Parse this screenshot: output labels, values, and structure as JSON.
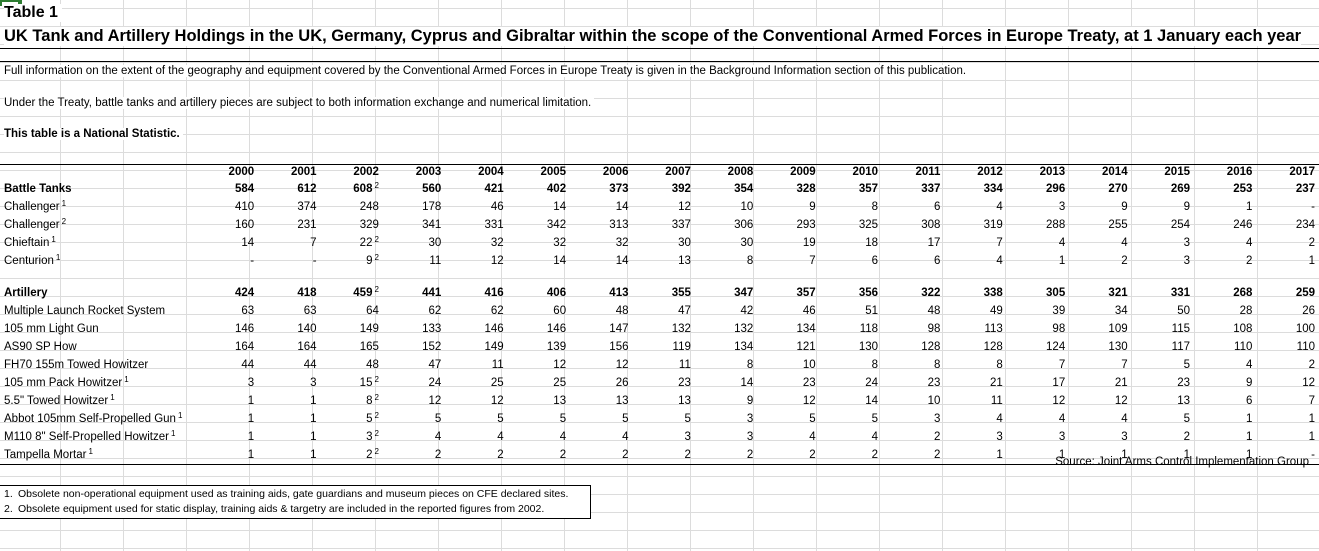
{
  "sheet": {
    "table_label": "Table 1"
  },
  "title": "UK Tank and Artillery Holdings in the UK, Germany, Cyprus and Gibraltar within the scope of the Conventional Armed Forces in Europe Treaty, at 1 January each year",
  "notes": {
    "info": "Full information on the extent of the geography and equipment covered by the Conventional Armed Forces in Europe Treaty is given in the Background Information section of this publication.",
    "limitation": "Under the Treaty, battle tanks and artillery pieces are subject to both information exchange and numerical limitation.",
    "national_statistic": "This table is a National Statistic."
  },
  "years": [
    "2000",
    "2001",
    "2002",
    "2003",
    "2004",
    "2005",
    "2006",
    "2007",
    "2008",
    "2009",
    "2010",
    "2011",
    "2012",
    "2013",
    "2014",
    "2015",
    "2016",
    "2017"
  ],
  "tank_rows": [
    {
      "label": "Battle Tanks",
      "label_sup": "",
      "bold": true,
      "values": [
        "584",
        "612",
        "608",
        "560",
        "421",
        "402",
        "373",
        "392",
        "354",
        "328",
        "357",
        "337",
        "334",
        "296",
        "270",
        "269",
        "253",
        "237"
      ],
      "sups": [
        "",
        "",
        "2",
        "",
        "",
        "",
        "",
        "",
        "",
        "",
        "",
        "",
        "",
        "",
        "",
        "",
        "",
        ""
      ]
    },
    {
      "label": "Challenger",
      "label_sup": "1",
      "bold": false,
      "values": [
        "410",
        "374",
        "248",
        "178",
        "46",
        "14",
        "14",
        "12",
        "10",
        "9",
        "8",
        "6",
        "4",
        "3",
        "9",
        "9",
        "1",
        "-"
      ],
      "sups": [
        "",
        "",
        "",
        "",
        "",
        "",
        "",
        "",
        "",
        "",
        "",
        "",
        "",
        "",
        "",
        "",
        "",
        ""
      ]
    },
    {
      "label": "Challenger",
      "label_sup": "2",
      "bold": false,
      "values": [
        "160",
        "231",
        "329",
        "341",
        "331",
        "342",
        "313",
        "337",
        "306",
        "293",
        "325",
        "308",
        "319",
        "288",
        "255",
        "254",
        "246",
        "234"
      ],
      "sups": [
        "",
        "",
        "",
        "",
        "",
        "",
        "",
        "",
        "",
        "",
        "",
        "",
        "",
        "",
        "",
        "",
        "",
        ""
      ]
    },
    {
      "label": "Chieftain",
      "label_sup": "1",
      "bold": false,
      "values": [
        "14",
        "7",
        "22",
        "30",
        "32",
        "32",
        "32",
        "30",
        "30",
        "19",
        "18",
        "17",
        "7",
        "4",
        "4",
        "3",
        "4",
        "2"
      ],
      "sups": [
        "",
        "",
        "2",
        "",
        "",
        "",
        "",
        "",
        "",
        "",
        "",
        "",
        "",
        "",
        "",
        "",
        "",
        ""
      ]
    },
    {
      "label": "Centurion",
      "label_sup": "1",
      "bold": false,
      "values": [
        "-",
        "-",
        "9",
        "11",
        "12",
        "14",
        "14",
        "13",
        "8",
        "7",
        "6",
        "6",
        "4",
        "1",
        "2",
        "3",
        "2",
        "1"
      ],
      "sups": [
        "",
        "",
        "2",
        "",
        "",
        "",
        "",
        "",
        "",
        "",
        "",
        "",
        "",
        "",
        "",
        "",
        "",
        ""
      ]
    }
  ],
  "artillery_rows": [
    {
      "label": "Artillery",
      "label_sup": "",
      "bold": true,
      "values": [
        "424",
        "418",
        "459",
        "441",
        "416",
        "406",
        "413",
        "355",
        "347",
        "357",
        "356",
        "322",
        "338",
        "305",
        "321",
        "331",
        "268",
        "259"
      ],
      "sups": [
        "",
        "",
        "2",
        "",
        "",
        "",
        "",
        "",
        "",
        "",
        "",
        "",
        "",
        "",
        "",
        "",
        "",
        ""
      ]
    },
    {
      "label": "Multiple Launch Rocket System",
      "label_sup": "",
      "bold": false,
      "values": [
        "63",
        "63",
        "64",
        "62",
        "62",
        "60",
        "48",
        "47",
        "42",
        "46",
        "51",
        "48",
        "49",
        "39",
        "34",
        "50",
        "28",
        "26"
      ],
      "sups": [
        "",
        "",
        "",
        "",
        "",
        "",
        "",
        "",
        "",
        "",
        "",
        "",
        "",
        "",
        "",
        "",
        "",
        ""
      ]
    },
    {
      "label": "105 mm Light Gun",
      "label_sup": "",
      "bold": false,
      "values": [
        "146",
        "140",
        "149",
        "133",
        "146",
        "146",
        "147",
        "132",
        "132",
        "134",
        "118",
        "98",
        "113",
        "98",
        "109",
        "115",
        "108",
        "100"
      ],
      "sups": [
        "",
        "",
        "",
        "",
        "",
        "",
        "",
        "",
        "",
        "",
        "",
        "",
        "",
        "",
        "",
        "",
        "",
        ""
      ]
    },
    {
      "label": "AS90 SP How",
      "label_sup": "",
      "bold": false,
      "values": [
        "164",
        "164",
        "165",
        "152",
        "149",
        "139",
        "156",
        "119",
        "134",
        "121",
        "130",
        "128",
        "128",
        "124",
        "130",
        "117",
        "110",
        "110"
      ],
      "sups": [
        "",
        "",
        "",
        "",
        "",
        "",
        "",
        "",
        "",
        "",
        "",
        "",
        "",
        "",
        "",
        "",
        "",
        ""
      ]
    },
    {
      "label": "FH70 155m Towed Howitzer",
      "label_sup": "",
      "bold": false,
      "values": [
        "44",
        "44",
        "48",
        "47",
        "11",
        "12",
        "12",
        "11",
        "8",
        "10",
        "8",
        "8",
        "8",
        "7",
        "7",
        "5",
        "4",
        "2"
      ],
      "sups": [
        "",
        "",
        "",
        "",
        "",
        "",
        "",
        "",
        "",
        "",
        "",
        "",
        "",
        "",
        "",
        "",
        "",
        ""
      ]
    },
    {
      "label": "105 mm Pack Howitzer",
      "label_sup": "1",
      "bold": false,
      "values": [
        "3",
        "3",
        "15",
        "24",
        "25",
        "25",
        "26",
        "23",
        "14",
        "23",
        "24",
        "23",
        "21",
        "17",
        "21",
        "23",
        "9",
        "12"
      ],
      "sups": [
        "",
        "",
        "2",
        "",
        "",
        "",
        "",
        "",
        "",
        "",
        "",
        "",
        "",
        "",
        "",
        "",
        "",
        ""
      ]
    },
    {
      "label": "5.5\" Towed Howitzer",
      "label_sup": "1",
      "bold": false,
      "values": [
        "1",
        "1",
        "8",
        "12",
        "12",
        "13",
        "13",
        "13",
        "9",
        "12",
        "14",
        "10",
        "11",
        "12",
        "12",
        "13",
        "6",
        "7"
      ],
      "sups": [
        "",
        "",
        "2",
        "",
        "",
        "",
        "",
        "",
        "",
        "",
        "",
        "",
        "",
        "",
        "",
        "",
        "",
        ""
      ]
    },
    {
      "label": "Abbot 105mm Self-Propelled Gun",
      "label_sup": "1",
      "bold": false,
      "values": [
        "1",
        "1",
        "5",
        "5",
        "5",
        "5",
        "5",
        "5",
        "3",
        "5",
        "5",
        "3",
        "4",
        "4",
        "4",
        "5",
        "1",
        "1"
      ],
      "sups": [
        "",
        "",
        "2",
        "",
        "",
        "",
        "",
        "",
        "",
        "",
        "",
        "",
        "",
        "",
        "",
        "",
        "",
        ""
      ]
    },
    {
      "label": "M110 8\" Self-Propelled Howitzer",
      "label_sup": "1",
      "bold": false,
      "values": [
        "1",
        "1",
        "3",
        "4",
        "4",
        "4",
        "4",
        "3",
        "3",
        "4",
        "4",
        "2",
        "3",
        "3",
        "3",
        "2",
        "1",
        "1"
      ],
      "sups": [
        "",
        "",
        "2",
        "",
        "",
        "",
        "",
        "",
        "",
        "",
        "",
        "",
        "",
        "",
        "",
        "",
        "",
        ""
      ]
    },
    {
      "label": "Tampella Mortar",
      "label_sup": "1",
      "bold": false,
      "values": [
        "1",
        "1",
        "2",
        "2",
        "2",
        "2",
        "2",
        "2",
        "2",
        "2",
        "2",
        "2",
        "1",
        "1",
        "1",
        "1",
        "1",
        "-"
      ],
      "sups": [
        "",
        "",
        "2",
        "",
        "",
        "",
        "",
        "",
        "",
        "",
        "",
        "",
        "",
        "",
        "",
        "",
        "",
        ""
      ]
    }
  ],
  "source": "Source: Joint Arms Control Implementation Group",
  "footnotes": [
    {
      "num": "1.",
      "text": "Obsolete non-operational equipment used as training aids, gate guardians and museum pieces on CFE declared sites."
    },
    {
      "num": "2.",
      "text": "Obsolete equipment used for static display, training aids & targetry are included in the reported figures from 2002."
    }
  ]
}
